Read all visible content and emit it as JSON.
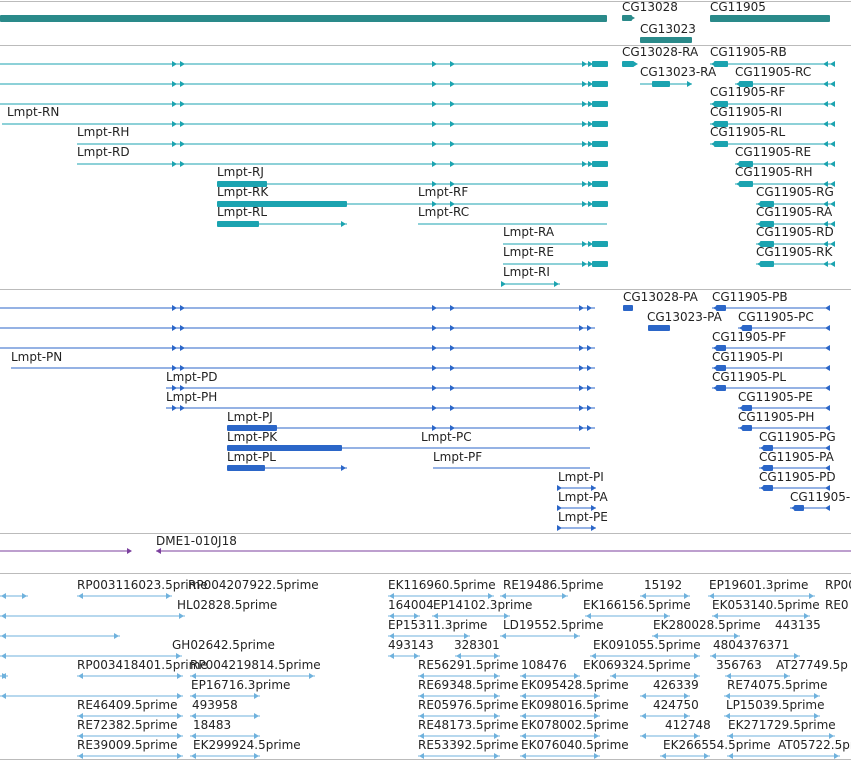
{
  "colors": {
    "gene": "#2a8a8a",
    "transcript": "#1ba3b0",
    "protein": "#2b66c8",
    "clone": "#7b3f9e",
    "est": "#6fb2dd",
    "separator": "#bbbbbb"
  },
  "tracks": {
    "genes": {
      "labels": [
        "CG13028",
        "CG13023",
        "CG11905"
      ]
    },
    "transcripts": {
      "labels": [
        "CG13028-RA",
        "CG11905-RB",
        "CG13023-RA",
        "CG11905-RC",
        "CG11905-RF",
        "Lmpt-RN",
        "CG11905-RI",
        "Lmpt-RH",
        "CG11905-RL",
        "Lmpt-RD",
        "CG11905-RE",
        "Lmpt-RJ",
        "CG11905-RH",
        "Lmpt-RK",
        "Lmpt-RF",
        "CG11905-RG",
        "Lmpt-RL",
        "Lmpt-RC",
        "CG11905-RA",
        "Lmpt-RA",
        "CG11905-RD",
        "Lmpt-RE",
        "CG11905-RK",
        "Lmpt-RI"
      ]
    },
    "proteins": {
      "labels": [
        "CG13028-PA",
        "CG11905-PB",
        "CG13023-PA",
        "CG11905-PC",
        "CG11905-PF",
        "Lmpt-PN",
        "CG11905-PI",
        "Lmpt-PD",
        "CG11905-PL",
        "Lmpt-PH",
        "CG11905-PE",
        "Lmpt-PJ",
        "CG11905-PH",
        "Lmpt-PK",
        "Lmpt-PC",
        "CG11905-PG",
        "Lmpt-PL",
        "Lmpt-PF",
        "CG11905-PA",
        "Lmpt-PI",
        "CG11905-PD",
        "Lmpt-PA",
        "CG11905-",
        "Lmpt-PE"
      ]
    },
    "clones": {
      "labels": [
        "DME1-010J18"
      ]
    },
    "ests": {
      "labels": [
        "RP003116023.5prime",
        "RP004207922.5prime",
        "EK116960.5prime",
        "RE19486.5prime",
        "15192",
        "EP19601.3prime",
        "RP00",
        "HL02828.5prime",
        "164004",
        "EP14102.3prime",
        "EK166156.5prime",
        "EK053140.5prime",
        "RE0",
        "EP15311.3prime",
        "LD19552.5prime",
        "EK280028.5prime",
        "443135",
        "GH02642.5prime",
        "493143",
        "328301",
        "EK091055.5prime",
        "4804376371",
        "RP003418401.5prime",
        "RP004219814.5prime",
        "RE56291.5prime",
        "108476",
        "EK069324.5prime",
        "356763",
        "AT27749.5p",
        "EP16716.3prime",
        "RE69348.5prime",
        "EK095428.5prime",
        "426339",
        "RE74075.5prime",
        "RE46409.5prime",
        "493958",
        "RE05976.5prime",
        "EK098016.5prime",
        "424750",
        "LP15039.5prime",
        "RE72382.5prime",
        "18483",
        "RE48173.5prime",
        "EK078002.5prime",
        "412748",
        "EK271729.5prime",
        "RE39009.5prime",
        "EK299924.5prime",
        "RE53392.5prime",
        "EK076040.5prime",
        "EK266554.5prime",
        "AT05722.5prime"
      ]
    }
  }
}
